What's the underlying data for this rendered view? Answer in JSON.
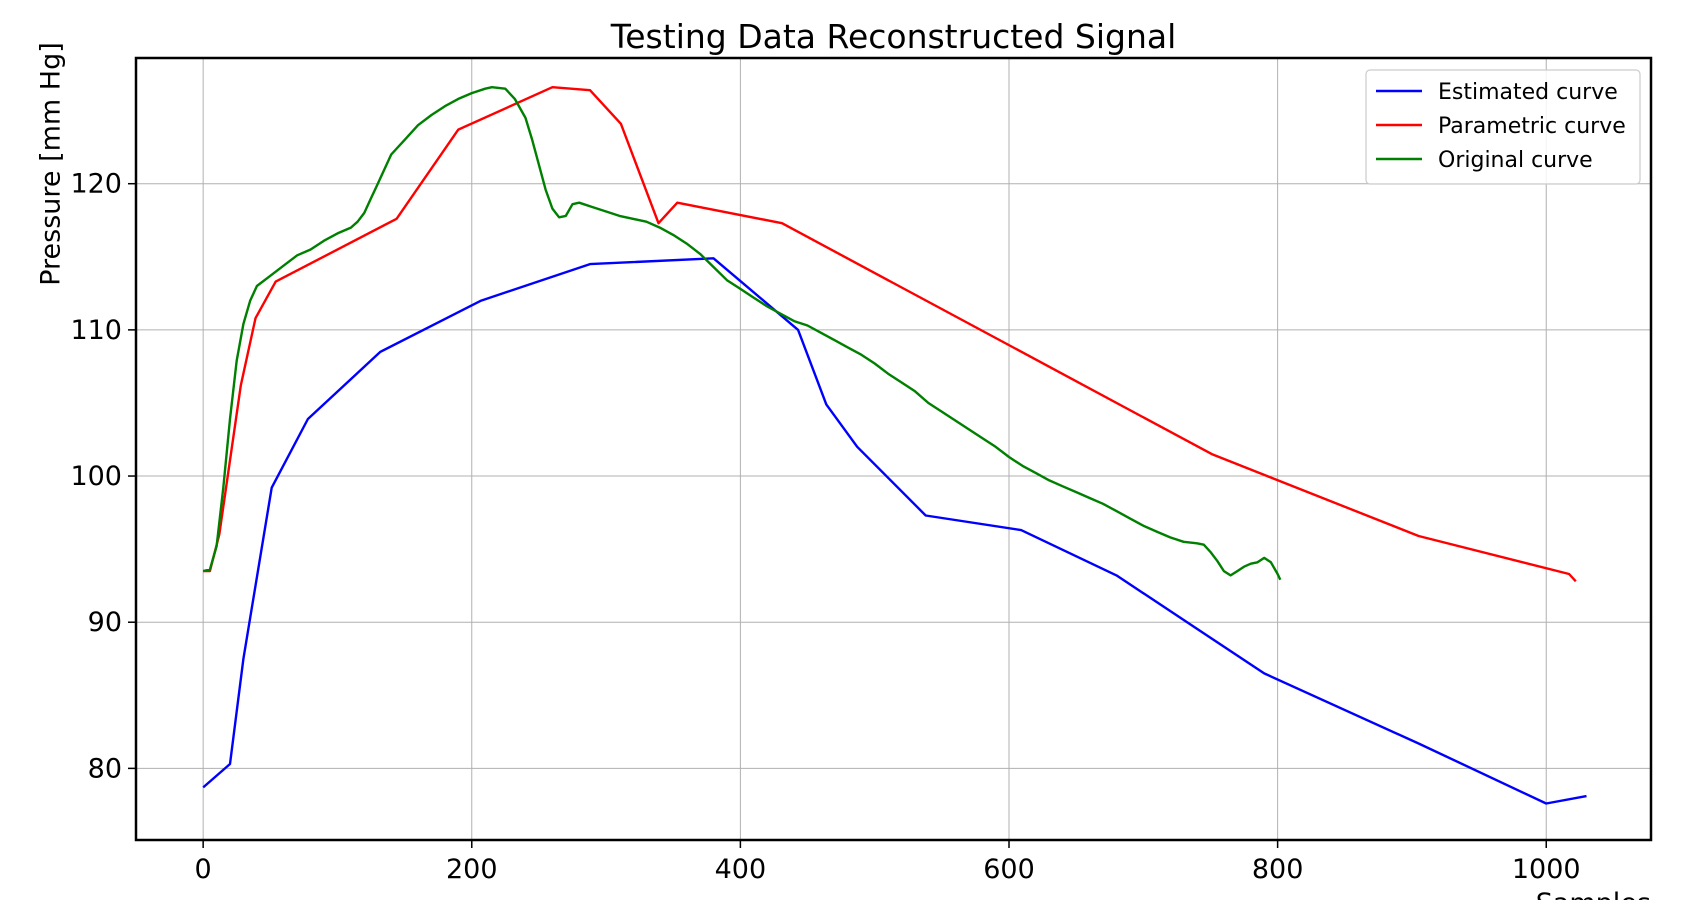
{
  "chart_data": {
    "type": "line",
    "title": "Testing Data Reconstructed Signal",
    "xlabel": "Samples",
    "ylabel": "Pressure [mm Hg]",
    "xlim": [
      -50,
      1078
    ],
    "ylim": [
      75.1,
      128.6
    ],
    "xticks": [
      0,
      200,
      400,
      600,
      800,
      1000
    ],
    "yticks": [
      80,
      90,
      100,
      110,
      120
    ],
    "grid": true,
    "legend_position": "top-right",
    "series": [
      {
        "name": "Estimated curve",
        "color": "#0000ff",
        "points": [
          [
            0,
            78.7
          ],
          [
            20,
            80.3
          ],
          [
            30,
            87.5
          ],
          [
            51,
            99.2
          ],
          [
            78,
            103.9
          ],
          [
            132,
            108.5
          ],
          [
            207,
            112.0
          ],
          [
            288,
            114.5
          ],
          [
            380,
            114.9
          ],
          [
            443,
            110.0
          ],
          [
            464,
            104.9
          ],
          [
            487,
            102.0
          ],
          [
            538,
            97.3
          ],
          [
            609,
            96.3
          ],
          [
            680,
            93.2
          ],
          [
            790,
            86.5
          ],
          [
            905,
            81.7
          ],
          [
            1000,
            77.6
          ],
          [
            1030,
            78.1
          ]
        ]
      },
      {
        "name": "Parametric curve",
        "color": "#ff0000",
        "points": [
          [
            0,
            93.5
          ],
          [
            5,
            93.5
          ],
          [
            12,
            96.0
          ],
          [
            28,
            106.2
          ],
          [
            39,
            110.8
          ],
          [
            54,
            113.3
          ],
          [
            144,
            117.6
          ],
          [
            190,
            123.7
          ],
          [
            260,
            126.6
          ],
          [
            288,
            126.4
          ],
          [
            311,
            124.1
          ],
          [
            339,
            117.3
          ],
          [
            353,
            118.7
          ],
          [
            431,
            117.3
          ],
          [
            751,
            101.5
          ],
          [
            905,
            95.9
          ],
          [
            1017,
            93.3
          ],
          [
            1022,
            92.8
          ]
        ]
      },
      {
        "name": "Original curve",
        "color": "#008000",
        "points": [
          [
            0,
            93.5
          ],
          [
            5,
            93.6
          ],
          [
            10,
            95.2
          ],
          [
            15,
            99.2
          ],
          [
            20,
            103.9
          ],
          [
            25,
            107.9
          ],
          [
            30,
            110.4
          ],
          [
            35,
            112.0
          ],
          [
            40,
            113.0
          ],
          [
            50,
            113.7
          ],
          [
            60,
            114.4
          ],
          [
            70,
            115.1
          ],
          [
            80,
            115.5
          ],
          [
            90,
            116.1
          ],
          [
            100,
            116.6
          ],
          [
            110,
            117.0
          ],
          [
            115,
            117.4
          ],
          [
            120,
            118.0
          ],
          [
            125,
            119.0
          ],
          [
            130,
            120.0
          ],
          [
            135,
            121.0
          ],
          [
            140,
            122.0
          ],
          [
            150,
            123.0
          ],
          [
            160,
            124.0
          ],
          [
            170,
            124.7
          ],
          [
            180,
            125.3
          ],
          [
            190,
            125.8
          ],
          [
            200,
            126.2
          ],
          [
            210,
            126.5
          ],
          [
            215,
            126.6
          ],
          [
            225,
            126.5
          ],
          [
            232,
            125.8
          ],
          [
            240,
            124.5
          ],
          [
            245,
            123.0
          ],
          [
            250,
            121.3
          ],
          [
            255,
            119.6
          ],
          [
            260,
            118.3
          ],
          [
            265,
            117.7
          ],
          [
            270,
            117.8
          ],
          [
            275,
            118.6
          ],
          [
            280,
            118.7
          ],
          [
            290,
            118.4
          ],
          [
            300,
            118.1
          ],
          [
            310,
            117.8
          ],
          [
            320,
            117.6
          ],
          [
            330,
            117.4
          ],
          [
            340,
            117.0
          ],
          [
            350,
            116.5
          ],
          [
            360,
            115.9
          ],
          [
            370,
            115.2
          ],
          [
            380,
            114.3
          ],
          [
            390,
            113.4
          ],
          [
            400,
            112.8
          ],
          [
            410,
            112.2
          ],
          [
            420,
            111.6
          ],
          [
            430,
            111.1
          ],
          [
            440,
            110.6
          ],
          [
            450,
            110.3
          ],
          [
            460,
            109.8
          ],
          [
            470,
            109.3
          ],
          [
            480,
            108.8
          ],
          [
            490,
            108.3
          ],
          [
            500,
            107.7
          ],
          [
            510,
            107.0
          ],
          [
            520,
            106.4
          ],
          [
            530,
            105.8
          ],
          [
            540,
            105.0
          ],
          [
            550,
            104.4
          ],
          [
            560,
            103.8
          ],
          [
            570,
            103.2
          ],
          [
            580,
            102.6
          ],
          [
            590,
            102.0
          ],
          [
            600,
            101.3
          ],
          [
            610,
            100.7
          ],
          [
            620,
            100.2
          ],
          [
            630,
            99.7
          ],
          [
            640,
            99.3
          ],
          [
            650,
            98.9
          ],
          [
            660,
            98.5
          ],
          [
            670,
            98.1
          ],
          [
            680,
            97.6
          ],
          [
            690,
            97.1
          ],
          [
            700,
            96.6
          ],
          [
            710,
            96.2
          ],
          [
            720,
            95.8
          ],
          [
            730,
            95.5
          ],
          [
            740,
            95.4
          ],
          [
            745,
            95.3
          ],
          [
            750,
            94.8
          ],
          [
            755,
            94.2
          ],
          [
            760,
            93.5
          ],
          [
            765,
            93.2
          ],
          [
            770,
            93.5
          ],
          [
            775,
            93.8
          ],
          [
            780,
            94.0
          ],
          [
            785,
            94.1
          ],
          [
            790,
            94.4
          ],
          [
            795,
            94.1
          ],
          [
            800,
            93.3
          ],
          [
            802,
            92.9
          ]
        ]
      }
    ]
  }
}
